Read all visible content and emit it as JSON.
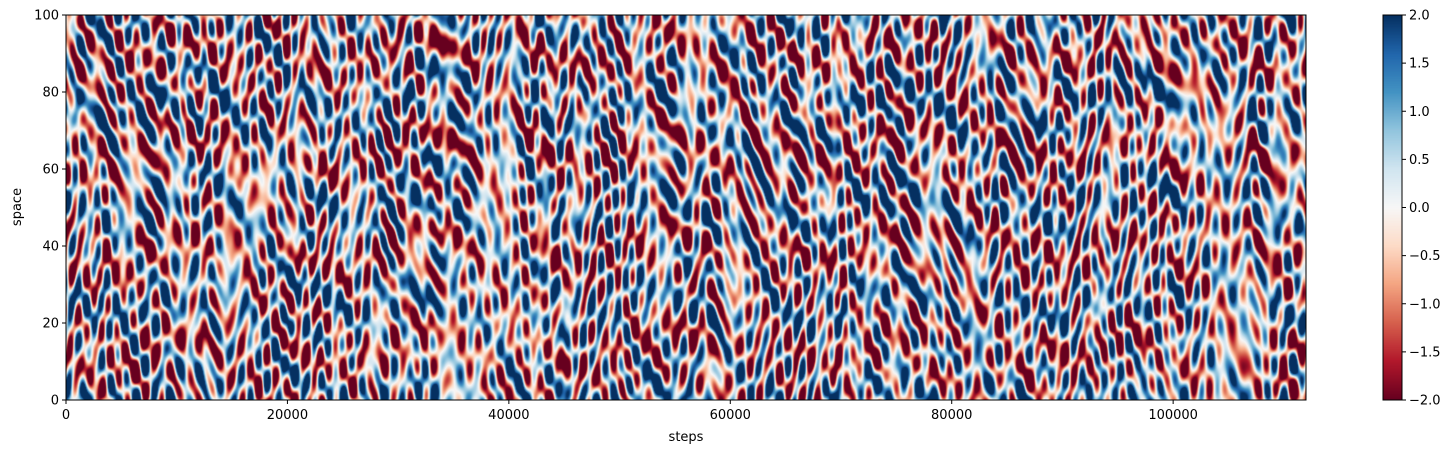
{
  "chart_data": {
    "type": "heatmap",
    "title": "",
    "xlabel": "steps",
    "ylabel": "space",
    "xlim": [
      0,
      112000
    ],
    "ylim": [
      0,
      100
    ],
    "x_ticks": [
      {
        "value": 0,
        "label": "0"
      },
      {
        "value": 20000,
        "label": "20000"
      },
      {
        "value": 40000,
        "label": "40000"
      },
      {
        "value": 60000,
        "label": "60000"
      },
      {
        "value": 80000,
        "label": "80000"
      },
      {
        "value": 100000,
        "label": "100000"
      }
    ],
    "y_ticks": [
      {
        "value": 0,
        "label": "0"
      },
      {
        "value": 20,
        "label": "20"
      },
      {
        "value": 40,
        "label": "40"
      },
      {
        "value": 60,
        "label": "60"
      },
      {
        "value": 80,
        "label": "80"
      },
      {
        "value": 100,
        "label": "100"
      }
    ],
    "colormap": "RdBu",
    "colormap_colors": [
      "#67001f",
      "#b2182b",
      "#d6604d",
      "#f4a582",
      "#fddbc7",
      "#f7f7f7",
      "#d1e5f0",
      "#92c5de",
      "#4393c3",
      "#2166ac",
      "#053061"
    ],
    "value_range": [
      -2.0,
      2.0
    ],
    "colorbar_ticks": [
      {
        "value": -2.0,
        "label": "−2.0"
      },
      {
        "value": -1.5,
        "label": "−1.5"
      },
      {
        "value": -1.0,
        "label": "−1.0"
      },
      {
        "value": -0.5,
        "label": "−0.5"
      },
      {
        "value": 0.0,
        "label": "0.0"
      },
      {
        "value": 0.5,
        "label": "0.5"
      },
      {
        "value": 1.0,
        "label": "1.0"
      },
      {
        "value": 1.5,
        "label": "1.5"
      },
      {
        "value": 2.0,
        "label": "2.0"
      }
    ],
    "grid": false,
    "legend": "none"
  }
}
